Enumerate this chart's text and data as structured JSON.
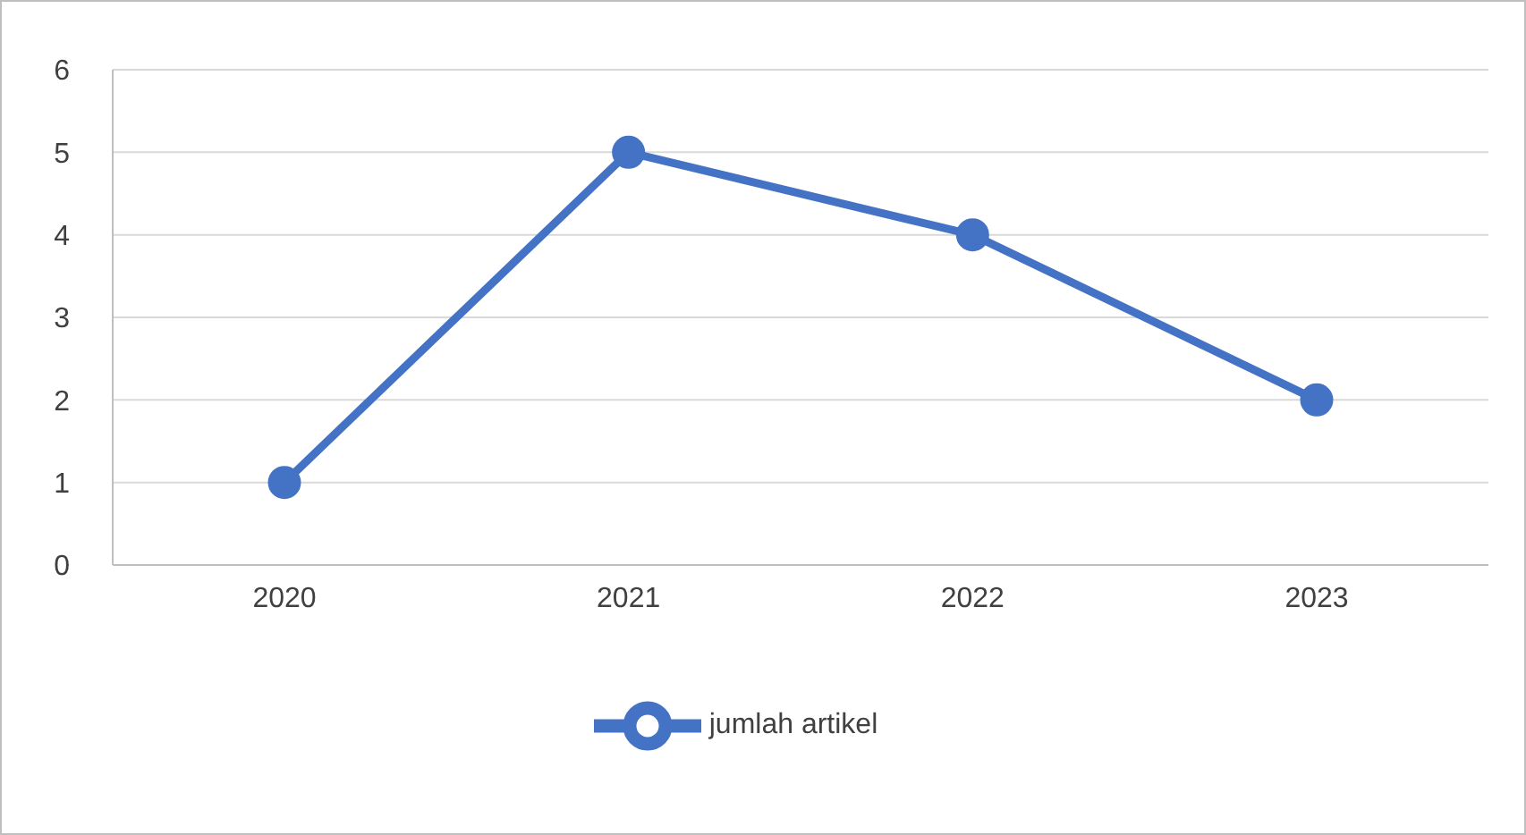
{
  "chart_data": {
    "type": "line",
    "categories": [
      "2020",
      "2021",
      "2022",
      "2023"
    ],
    "series": [
      {
        "name": "jumlah artikel",
        "color": "#4472c4",
        "values": [
          1,
          5,
          4,
          2
        ]
      }
    ],
    "ylim": [
      0,
      6
    ],
    "yticks": [
      0,
      1,
      2,
      3,
      4,
      5,
      6
    ],
    "grid": "y",
    "legend": "bottom",
    "marker": "circle",
    "line_style": "solid"
  }
}
